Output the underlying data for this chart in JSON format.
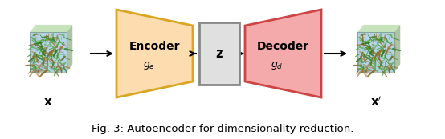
{
  "fig_width": 5.54,
  "fig_height": 1.74,
  "dpi": 100,
  "bg_color": "#ffffff",
  "caption": "Fig. 3: Autoencoder for dimensionality reduction.",
  "caption_fontsize": 9.5,
  "encoder_fill": "#FDDCB0",
  "encoder_edge": "#DAA520",
  "decoder_fill": "#F4AAAA",
  "decoder_edge": "#CC4444",
  "z_fill": "#E0E0E0",
  "z_edge": "#888888",
  "arrow_color": "#000000",
  "encoder_label": "Encoder",
  "decoder_label": "Decoder",
  "z_label": "z"
}
